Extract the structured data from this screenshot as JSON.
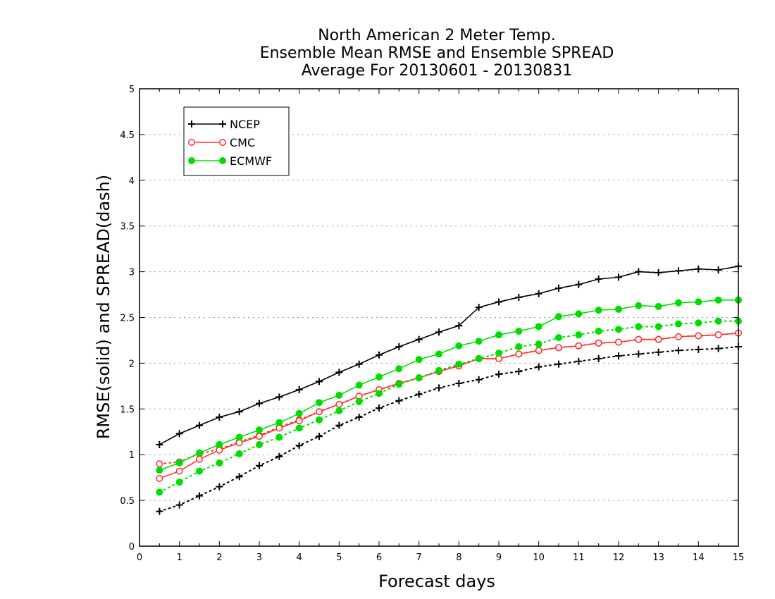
{
  "chart_data": {
    "type": "line",
    "title": [
      "North American 2 Meter Temp.",
      "Ensemble Mean RMSE and Ensemble SPREAD",
      "Average For 20130601 - 20130831"
    ],
    "xlabel": "Forecast days",
    "ylabel": "RMSE(solid) and SPREAD(dash)",
    "xlim": [
      0,
      15
    ],
    "ylim": [
      0,
      5
    ],
    "xticks": [
      "0",
      "1",
      "2",
      "3",
      "4",
      "5",
      "6",
      "7",
      "8",
      "9",
      "10",
      "11",
      "12",
      "13",
      "14",
      "15"
    ],
    "yticks": [
      "0",
      "0.5",
      "1",
      "1.5",
      "2",
      "2.5",
      "3",
      "3.5",
      "4",
      "4.5",
      "5"
    ],
    "grid": "horizontal dotted",
    "legend_position": "top-left",
    "x": [
      0.5,
      1,
      1.5,
      2,
      2.5,
      3,
      3.5,
      4,
      4.5,
      5,
      5.5,
      6,
      6.5,
      7,
      7.5,
      8,
      8.5,
      9,
      9.5,
      10,
      10.5,
      11,
      11.5,
      12,
      12.5,
      13,
      13.5,
      14,
      14.5,
      15
    ],
    "series": [
      {
        "name": "NCEP",
        "marker": "plus",
        "color": "#000000",
        "rmse": [
          1.11,
          1.23,
          1.32,
          1.41,
          1.47,
          1.56,
          1.63,
          1.71,
          1.8,
          1.9,
          1.99,
          2.09,
          2.18,
          2.26,
          2.34,
          2.41,
          2.61,
          2.67,
          2.72,
          2.76,
          2.82,
          2.86,
          2.92,
          2.94,
          3.0,
          2.99,
          3.01,
          3.03,
          3.02,
          3.06
        ],
        "spread": [
          0.38,
          0.45,
          0.55,
          0.65,
          0.76,
          0.88,
          0.98,
          1.1,
          1.2,
          1.32,
          1.41,
          1.51,
          1.59,
          1.66,
          1.73,
          1.78,
          1.82,
          1.88,
          1.91,
          1.96,
          1.99,
          2.02,
          2.05,
          2.08,
          2.1,
          2.12,
          2.14,
          2.15,
          2.16,
          2.18
        ]
      },
      {
        "name": "CMC",
        "marker": "open-circle",
        "color": "#ff3333",
        "rmse": [
          0.74,
          0.82,
          0.95,
          1.05,
          1.13,
          1.2,
          1.29,
          1.37,
          1.47,
          1.55,
          1.64,
          1.71,
          1.78,
          1.84,
          1.91,
          1.97,
          2.05,
          2.05,
          2.1,
          2.14,
          2.17,
          2.19,
          2.22,
          2.23,
          2.26,
          2.26,
          2.29,
          2.3,
          2.31,
          2.33
        ],
        "spread": [
          0.9,
          0.92,
          1.01,
          1.06,
          1.14,
          1.21,
          1.3,
          1.38,
          1.47,
          1.55,
          1.64,
          1.71,
          1.78,
          1.84,
          1.91,
          1.97,
          2.05,
          2.05,
          2.1,
          2.14,
          2.17,
          2.19,
          2.22,
          2.23,
          2.26,
          2.26,
          2.29,
          2.3,
          2.31,
          2.33
        ]
      },
      {
        "name": "ECMWF",
        "marker": "filled-circle",
        "color": "#00dd00",
        "rmse": [
          0.83,
          0.91,
          1.02,
          1.11,
          1.19,
          1.27,
          1.35,
          1.45,
          1.57,
          1.65,
          1.76,
          1.85,
          1.94,
          2.04,
          2.1,
          2.19,
          2.24,
          2.31,
          2.35,
          2.4,
          2.51,
          2.54,
          2.58,
          2.59,
          2.63,
          2.62,
          2.66,
          2.67,
          2.69,
          2.69
        ],
        "spread": [
          0.59,
          0.7,
          0.82,
          0.91,
          1.01,
          1.11,
          1.19,
          1.29,
          1.38,
          1.48,
          1.58,
          1.67,
          1.77,
          1.84,
          1.92,
          1.99,
          2.05,
          2.11,
          2.18,
          2.21,
          2.28,
          2.31,
          2.35,
          2.37,
          2.4,
          2.4,
          2.43,
          2.44,
          2.46,
          2.46
        ]
      }
    ]
  }
}
